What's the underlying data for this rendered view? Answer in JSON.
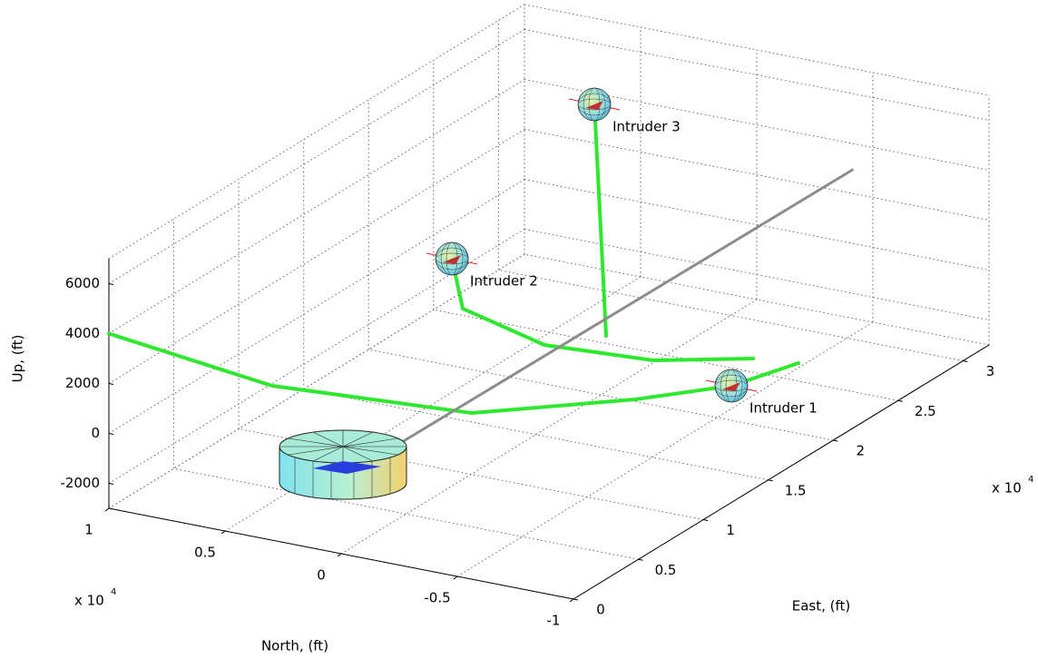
{
  "chart_data": {
    "type": "line3d",
    "xlabel": "East, (ft)",
    "ylabel": "North, (ft)",
    "zlabel": "Up, (ft)",
    "xlim": [
      0,
      32000
    ],
    "ylim": [
      -10000,
      10000
    ],
    "zlim": [
      -3000,
      7000
    ],
    "xticks": [
      0,
      {
        "value": 5000,
        "label": "0.5"
      },
      {
        "value": 10000,
        "label": "1"
      },
      {
        "value": 15000,
        "label": "1.5"
      },
      {
        "value": 20000,
        "label": "2"
      },
      {
        "value": 25000,
        "label": "2.5"
      },
      {
        "value": 30000,
        "label": "3"
      }
    ],
    "yticks": [
      {
        "value": -10000,
        "label": "-1"
      },
      {
        "value": -5000,
        "label": "-0.5"
      },
      0,
      {
        "value": 5000,
        "label": "0.5"
      },
      {
        "value": 10000,
        "label": "1"
      }
    ],
    "zticks": [
      -2000,
      0,
      2000,
      4000,
      6000
    ],
    "x_multiplier": {
      "base": "x 10",
      "exponent": "4"
    },
    "y_multiplier": {
      "base": "x 10",
      "exponent": "4"
    },
    "grid": true,
    "series": [
      {
        "color": "#2ee82e",
        "x": [
          0,
          1638,
          5143,
          9487,
          12580,
          15997
        ],
        "y": [
          10000,
          3884,
          -2750,
          -7352,
          -9765,
          -10745
        ],
        "z": [
          4000,
          2500,
          1500,
          1500,
          1500,
          1500
        ]
      },
      {
        "color": "#2ee82e",
        "x": [
          13541,
          10171,
          9420,
          9978,
          12012
        ],
        "y": [
          2803,
          451,
          -3485,
          -7861,
          -11021
        ],
        "z": [
          4000,
          3500,
          3000,
          3000,
          3000
        ]
      },
      {
        "color": "#2ee82e",
        "x": [
          26158,
          11436
        ],
        "y": [
          3723,
          -5013
        ],
        "z": [
          6000,
          3000
        ]
      },
      {
        "color": "#8c8c8c",
        "x": [
          0,
          39000
        ],
        "y": [
          0,
          -200
        ],
        "z": [
          0,
          0
        ]
      }
    ],
    "annotations": [
      {
        "text": "Intruder 1",
        "x": 12580,
        "y": -9765,
        "z": 1500
      },
      {
        "text": "Intruder 2",
        "x": 13541,
        "y": 2803,
        "z": 4000
      },
      {
        "text": "Intruder 3",
        "x": 26158,
        "y": 3723,
        "z": 6000
      }
    ]
  }
}
